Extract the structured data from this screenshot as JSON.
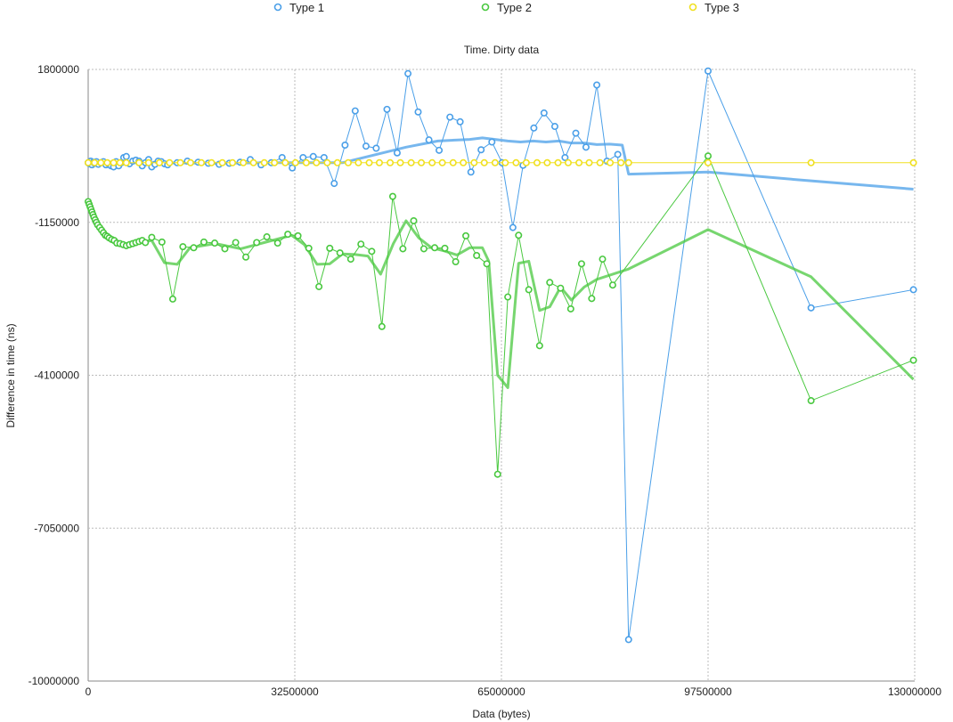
{
  "chart_data": {
    "type": "scatter",
    "title": "Time. Dirty data",
    "xlabel": "Data (bytes)",
    "ylabel": "Difference in time (ns)",
    "xlim": [
      0,
      130000000
    ],
    "ylim": [
      -10000000,
      1800000
    ],
    "xticks": [
      "0",
      "32500000",
      "65000000",
      "97500000",
      "130000000"
    ],
    "yticks": [
      "1800000",
      "-1150000",
      "-4100000",
      "-7050000",
      "-10000000"
    ],
    "grid": true,
    "legend_position": "top",
    "series": [
      {
        "name": "Type 1",
        "color": "#4a9fe8",
        "markers": true,
        "points": [
          [
            0,
            0
          ],
          [
            200000,
            -20000
          ],
          [
            400000,
            30000
          ],
          [
            600000,
            -40000
          ],
          [
            800000,
            10000
          ],
          [
            1000000,
            -10000
          ],
          [
            1300000,
            20000
          ],
          [
            1600000,
            -30000
          ],
          [
            2000000,
            0
          ],
          [
            2400000,
            20000
          ],
          [
            2800000,
            -40000
          ],
          [
            3200000,
            -20000
          ],
          [
            3600000,
            -60000
          ],
          [
            4000000,
            -80000
          ],
          [
            4400000,
            20000
          ],
          [
            4800000,
            -60000
          ],
          [
            5200000,
            0
          ],
          [
            5600000,
            100000
          ],
          [
            6000000,
            120000
          ],
          [
            6500000,
            -20000
          ],
          [
            7000000,
            30000
          ],
          [
            7500000,
            50000
          ],
          [
            8000000,
            30000
          ],
          [
            8500000,
            -60000
          ],
          [
            9000000,
            0
          ],
          [
            9500000,
            60000
          ],
          [
            10000000,
            -80000
          ],
          [
            10500000,
            -30000
          ],
          [
            11000000,
            30000
          ],
          [
            11500000,
            20000
          ],
          [
            12000000,
            -20000
          ],
          [
            12500000,
            -40000
          ],
          [
            14000000,
            0
          ],
          [
            15600000,
            30000
          ],
          [
            17300000,
            10000
          ],
          [
            18900000,
            -10000
          ],
          [
            20600000,
            -30000
          ],
          [
            22200000,
            -10000
          ],
          [
            23900000,
            10000
          ],
          [
            25500000,
            60000
          ],
          [
            27200000,
            -40000
          ],
          [
            28800000,
            0
          ],
          [
            30500000,
            100000
          ],
          [
            32100000,
            -100000
          ],
          [
            33800000,
            100000
          ],
          [
            35400000,
            120000
          ],
          [
            37100000,
            100000
          ],
          [
            38700000,
            -400000
          ],
          [
            40400000,
            340000
          ],
          [
            42000000,
            1000000
          ],
          [
            43700000,
            320000
          ],
          [
            45300000,
            280000
          ],
          [
            47000000,
            1030000
          ],
          [
            48600000,
            190000
          ],
          [
            50300000,
            1720000
          ],
          [
            51900000,
            980000
          ],
          [
            53600000,
            440000
          ],
          [
            55200000,
            240000
          ],
          [
            56900000,
            880000
          ],
          [
            58500000,
            790000
          ],
          [
            60200000,
            -180000
          ],
          [
            61800000,
            250000
          ],
          [
            63500000,
            400000
          ],
          [
            65100000,
            0
          ],
          [
            66800000,
            -1250000
          ],
          [
            68400000,
            -50000
          ],
          [
            70100000,
            670000
          ],
          [
            71700000,
            960000
          ],
          [
            73400000,
            700000
          ],
          [
            75000000,
            100000
          ],
          [
            76700000,
            570000
          ],
          [
            78300000,
            300000
          ],
          [
            80000000,
            1500000
          ],
          [
            81600000,
            30000
          ],
          [
            83300000,
            160000
          ],
          [
            85000000,
            -9200000
          ],
          [
            97500000,
            1770000
          ],
          [
            113700000,
            -2800000
          ],
          [
            129800000,
            -2450000
          ]
        ],
        "trend": [
          [
            0,
            0
          ],
          [
            10000000,
            0
          ],
          [
            20000000,
            -10000
          ],
          [
            30000000,
            0
          ],
          [
            40000000,
            0
          ],
          [
            45000000,
            150000
          ],
          [
            50000000,
            300000
          ],
          [
            55000000,
            420000
          ],
          [
            60000000,
            450000
          ],
          [
            62000000,
            480000
          ],
          [
            64000000,
            450000
          ],
          [
            66000000,
            420000
          ],
          [
            68000000,
            400000
          ],
          [
            70000000,
            420000
          ],
          [
            72000000,
            400000
          ],
          [
            74000000,
            420000
          ],
          [
            76000000,
            380000
          ],
          [
            78000000,
            380000
          ],
          [
            80000000,
            350000
          ],
          [
            82000000,
            360000
          ],
          [
            84000000,
            340000
          ],
          [
            85000000,
            -220000
          ],
          [
            97500000,
            -180000
          ],
          [
            113700000,
            -350000
          ],
          [
            129800000,
            -510000
          ]
        ]
      },
      {
        "name": "Type 2",
        "color": "#49c83f",
        "markers": true,
        "points": [
          [
            0,
            -750000
          ],
          [
            150000,
            -800000
          ],
          [
            300000,
            -850000
          ],
          [
            450000,
            -900000
          ],
          [
            600000,
            -950000
          ],
          [
            750000,
            -1000000
          ],
          [
            900000,
            -1050000
          ],
          [
            1100000,
            -1100000
          ],
          [
            1300000,
            -1150000
          ],
          [
            1500000,
            -1200000
          ],
          [
            1800000,
            -1250000
          ],
          [
            2100000,
            -1300000
          ],
          [
            2400000,
            -1350000
          ],
          [
            2700000,
            -1400000
          ],
          [
            3000000,
            -1420000
          ],
          [
            3300000,
            -1450000
          ],
          [
            3700000,
            -1480000
          ],
          [
            4100000,
            -1500000
          ],
          [
            4500000,
            -1550000
          ],
          [
            5000000,
            -1560000
          ],
          [
            5500000,
            -1580000
          ],
          [
            6000000,
            -1600000
          ],
          [
            6500000,
            -1580000
          ],
          [
            7000000,
            -1560000
          ],
          [
            7500000,
            -1540000
          ],
          [
            8000000,
            -1520000
          ],
          [
            8500000,
            -1500000
          ],
          [
            9000000,
            -1540000
          ],
          [
            10000000,
            -1440000
          ],
          [
            11600000,
            -1530000
          ],
          [
            13300000,
            -2630000
          ],
          [
            14900000,
            -1620000
          ],
          [
            16600000,
            -1640000
          ],
          [
            18200000,
            -1530000
          ],
          [
            19900000,
            -1550000
          ],
          [
            21500000,
            -1660000
          ],
          [
            23200000,
            -1540000
          ],
          [
            24800000,
            -1820000
          ],
          [
            26500000,
            -1540000
          ],
          [
            28100000,
            -1430000
          ],
          [
            29800000,
            -1550000
          ],
          [
            31400000,
            -1380000
          ],
          [
            33000000,
            -1410000
          ],
          [
            34700000,
            -1650000
          ],
          [
            36300000,
            -2390000
          ],
          [
            38000000,
            -1650000
          ],
          [
            39600000,
            -1740000
          ],
          [
            41300000,
            -1860000
          ],
          [
            42900000,
            -1570000
          ],
          [
            44600000,
            -1710000
          ],
          [
            46200000,
            -3160000
          ],
          [
            47900000,
            -650000
          ],
          [
            49500000,
            -1660000
          ],
          [
            51200000,
            -1120000
          ],
          [
            52800000,
            -1660000
          ],
          [
            54500000,
            -1640000
          ],
          [
            56100000,
            -1650000
          ],
          [
            57800000,
            -1910000
          ],
          [
            59400000,
            -1410000
          ],
          [
            61100000,
            -1790000
          ],
          [
            62700000,
            -1950000
          ],
          [
            64400000,
            -6010000
          ],
          [
            66000000,
            -2590000
          ],
          [
            67700000,
            -1400000
          ],
          [
            69300000,
            -2450000
          ],
          [
            71000000,
            -3530000
          ],
          [
            72600000,
            -2310000
          ],
          [
            74300000,
            -2420000
          ],
          [
            75900000,
            -2820000
          ],
          [
            77600000,
            -1950000
          ],
          [
            79200000,
            -2620000
          ],
          [
            80900000,
            -1860000
          ],
          [
            82500000,
            -2360000
          ],
          [
            97500000,
            130000
          ],
          [
            113700000,
            -4590000
          ],
          [
            129800000,
            -3810000
          ]
        ],
        "trend": [
          [
            0,
            -750000
          ],
          [
            500000,
            -900000
          ],
          [
            1000000,
            -1050000
          ],
          [
            2000000,
            -1250000
          ],
          [
            3000000,
            -1400000
          ],
          [
            4000000,
            -1480000
          ],
          [
            5000000,
            -1540000
          ],
          [
            6000000,
            -1580000
          ],
          [
            8000000,
            -1540000
          ],
          [
            10000000,
            -1500000
          ],
          [
            12000000,
            -1930000
          ],
          [
            14000000,
            -1960000
          ],
          [
            16000000,
            -1640000
          ],
          [
            20000000,
            -1560000
          ],
          [
            24000000,
            -1660000
          ],
          [
            28000000,
            -1530000
          ],
          [
            32000000,
            -1400000
          ],
          [
            34000000,
            -1580000
          ],
          [
            36000000,
            -1960000
          ],
          [
            38000000,
            -1950000
          ],
          [
            40000000,
            -1760000
          ],
          [
            42000000,
            -1770000
          ],
          [
            44000000,
            -1800000
          ],
          [
            46000000,
            -2150000
          ],
          [
            48000000,
            -1560000
          ],
          [
            50000000,
            -1120000
          ],
          [
            52000000,
            -1450000
          ],
          [
            54000000,
            -1640000
          ],
          [
            56000000,
            -1700000
          ],
          [
            58000000,
            -1780000
          ],
          [
            60000000,
            -1640000
          ],
          [
            62000000,
            -1640000
          ],
          [
            63000000,
            -1900000
          ],
          [
            64400000,
            -4100000
          ],
          [
            66000000,
            -4340000
          ],
          [
            67700000,
            -1940000
          ],
          [
            69300000,
            -1900000
          ],
          [
            71000000,
            -2850000
          ],
          [
            72600000,
            -2780000
          ],
          [
            74300000,
            -2400000
          ],
          [
            76000000,
            -2650000
          ],
          [
            78000000,
            -2400000
          ],
          [
            80000000,
            -2250000
          ],
          [
            85000000,
            -2050000
          ],
          [
            97500000,
            -1290000
          ],
          [
            113700000,
            -2200000
          ],
          [
            129800000,
            -4180000
          ]
        ]
      },
      {
        "name": "Type 3",
        "color": "#f0e020",
        "markers": true,
        "points": [
          [
            0,
            0
          ],
          [
            1000000,
            0
          ],
          [
            2000000,
            0
          ],
          [
            3000000,
            0
          ],
          [
            4000000,
            0
          ],
          [
            5000000,
            0
          ],
          [
            6000000,
            0
          ],
          [
            8000000,
            0
          ],
          [
            9500000,
            0
          ],
          [
            11200000,
            0
          ],
          [
            12800000,
            0
          ],
          [
            14500000,
            0
          ],
          [
            16100000,
            0
          ],
          [
            17800000,
            0
          ],
          [
            19400000,
            0
          ],
          [
            21100000,
            0
          ],
          [
            22700000,
            0
          ],
          [
            24400000,
            0
          ],
          [
            26000000,
            0
          ],
          [
            27700000,
            0
          ],
          [
            29300000,
            0
          ],
          [
            31000000,
            0
          ],
          [
            32600000,
            0
          ],
          [
            34300000,
            0
          ],
          [
            35900000,
            0
          ],
          [
            37600000,
            0
          ],
          [
            39200000,
            0
          ],
          [
            40900000,
            0
          ],
          [
            42500000,
            0
          ],
          [
            44200000,
            0
          ],
          [
            45800000,
            0
          ],
          [
            47500000,
            0
          ],
          [
            49100000,
            0
          ],
          [
            50800000,
            0
          ],
          [
            52400000,
            0
          ],
          [
            54100000,
            0
          ],
          [
            55700000,
            0
          ],
          [
            57400000,
            0
          ],
          [
            59000000,
            0
          ],
          [
            60700000,
            0
          ],
          [
            62300000,
            0
          ],
          [
            64000000,
            0
          ],
          [
            65600000,
            0
          ],
          [
            67300000,
            0
          ],
          [
            68900000,
            0
          ],
          [
            70600000,
            0
          ],
          [
            72200000,
            0
          ],
          [
            73900000,
            0
          ],
          [
            75500000,
            0
          ],
          [
            77200000,
            0
          ],
          [
            78800000,
            0
          ],
          [
            80500000,
            0
          ],
          [
            82100000,
            0
          ],
          [
            83800000,
            0
          ],
          [
            85000000,
            0
          ],
          [
            97500000,
            0
          ],
          [
            113700000,
            0
          ],
          [
            129800000,
            0
          ]
        ],
        "trend": []
      }
    ]
  }
}
